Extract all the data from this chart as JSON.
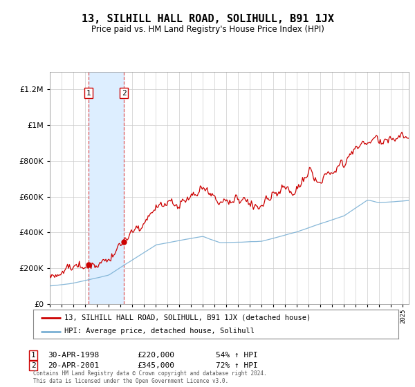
{
  "title": "13, SILHILL HALL ROAD, SOLIHULL, B91 1JX",
  "subtitle": "Price paid vs. HM Land Registry's House Price Index (HPI)",
  "legend_line1": "13, SILHILL HALL ROAD, SOLIHULL, B91 1JX (detached house)",
  "legend_line2": "HPI: Average price, detached house, Solihull",
  "transaction1_date": "30-APR-1998",
  "transaction1_price": "£220,000",
  "transaction1_hpi": "54% ↑ HPI",
  "transaction1_year": 1998.29,
  "transaction1_value": 220000,
  "transaction2_date": "20-APR-2001",
  "transaction2_price": "£345,000",
  "transaction2_hpi": "72% ↑ HPI",
  "transaction2_year": 2001.29,
  "transaction2_value": 345000,
  "red_line_color": "#cc0000",
  "blue_line_color": "#7ab0d4",
  "highlight_color": "#ddeeff",
  "grid_color": "#cccccc",
  "background_color": "#ffffff",
  "ylim": [
    0,
    1300000
  ],
  "xlim_start": 1995.0,
  "xlim_end": 2025.5,
  "footer": "Contains HM Land Registry data © Crown copyright and database right 2024.\nThis data is licensed under the Open Government Licence v3.0."
}
